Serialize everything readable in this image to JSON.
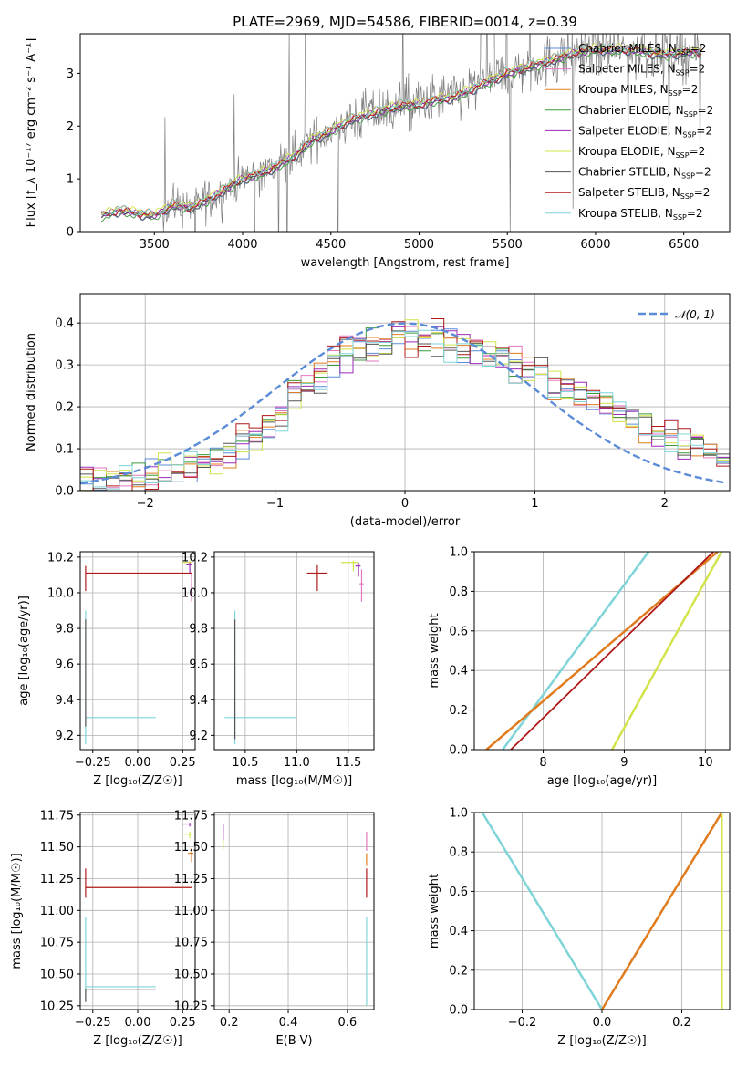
{
  "figure": {
    "title": "PLATE=2969, MJD=54586, FIBERID=0014, z=0.39"
  },
  "colors": {
    "Chabrier MILES": "#5b8bd8",
    "Salpeter MILES": "#e377c2",
    "Kroupa MILES": "#e07b1e",
    "Chabrier ELODIE": "#3a9a3a",
    "Salpeter ELODIE": "#9a2bb8",
    "Kroupa ELODIE": "#d3e34a",
    "Chabrier STELIB": "#555555",
    "Salpeter STELIB": "#b01818",
    "Kroupa STELIB": "#7fd4d8",
    "data": "#7f7f7f",
    "normal": "#5b8bd8"
  },
  "chart_data": [
    {
      "id": "spectrum",
      "type": "line",
      "title": "PLATE=2969, MJD=54586, FIBERID=0014, z=0.39",
      "xlabel": "wavelength [Angstrom, rest frame]",
      "ylabel": "Flux [f_λ 10⁻¹⁷ erg cm⁻² s⁻¹ A⁻¹]",
      "xlim": [
        3080,
        6760
      ],
      "ylim": [
        0,
        3.75
      ],
      "xticks": [
        "3500",
        "4000",
        "4500",
        "5000",
        "5500",
        "6000",
        "6500"
      ],
      "yticks": [
        "0",
        "1",
        "2",
        "3"
      ],
      "grid": false,
      "legend_position": "bottom-right",
      "legend": [
        "Chabrier MILES, N_SSP=2",
        "Salpeter MILES, N_SSP=2",
        "Kroupa MILES, N_SSP=2",
        "Chabrier ELODIE, N_SSP=2",
        "Salpeter ELODIE, N_SSP=2",
        "Kroupa ELODIE, N_SSP=2",
        "Chabrier STELIB, N_SSP=2",
        "Salpeter STELIB, N_SSP=2",
        "Kroupa STELIB, N_SSP=2"
      ],
      "model_trend": {
        "x": [
          3200,
          3300,
          3400,
          3500,
          3600,
          3700,
          3800,
          3900,
          4000,
          4100,
          4200,
          4300,
          4400,
          4500,
          4600,
          4700,
          4800,
          4900,
          5000,
          5100,
          5200,
          5300,
          5400,
          5500,
          5600,
          5700,
          5800,
          5900,
          6000,
          6100,
          6200,
          6300,
          6400,
          6500,
          6600
        ],
        "y": [
          0.3,
          0.4,
          0.35,
          0.3,
          0.5,
          0.45,
          0.6,
          0.8,
          1.0,
          1.1,
          1.25,
          1.45,
          1.75,
          1.9,
          2.1,
          2.2,
          2.3,
          2.4,
          2.4,
          2.5,
          2.55,
          2.7,
          2.85,
          3.0,
          3.1,
          3.2,
          3.3,
          3.4,
          3.45,
          3.45,
          3.45,
          3.4,
          3.35,
          3.4,
          3.4
        ]
      }
    },
    {
      "id": "residuals",
      "type": "line",
      "xlabel": "(data-model)/error",
      "ylabel": "Normed distribution",
      "xlim": [
        -2.5,
        2.5
      ],
      "ylim": [
        0,
        0.47
      ],
      "xticks": [
        "−2",
        "−1",
        "0",
        "1",
        "2"
      ],
      "yticks": [
        "0.0",
        "0.1",
        "0.2",
        "0.3",
        "0.4"
      ],
      "grid": true,
      "legend_position": "top-right",
      "legend": [
        "𝒩(0, 1)"
      ],
      "normal_curve": {
        "mean": 0,
        "sigma": 1
      },
      "histogram_trend": {
        "x": [
          -2.5,
          -2.0,
          -1.5,
          -1.0,
          -0.5,
          0.0,
          0.5,
          1.0,
          1.5,
          2.0,
          2.5
        ],
        "y": [
          0.02,
          0.03,
          0.07,
          0.17,
          0.33,
          0.37,
          0.35,
          0.28,
          0.21,
          0.13,
          0.08
        ]
      }
    },
    {
      "id": "age-vs-Z",
      "type": "scatter",
      "xlabel": "Z [log₁₀(Z/Z☉)]",
      "ylabel": "age  [log₁₀(age/yr)]",
      "xlim": [
        -0.32,
        0.32
      ],
      "ylim": [
        9.12,
        10.23
      ],
      "xticks": [
        "−0.25",
        "0.00",
        "0.25"
      ],
      "yticks": [
        "9.2",
        "9.4",
        "9.6",
        "9.8",
        "10.0",
        "10.2"
      ],
      "grid": true
    },
    {
      "id": "age-vs-mass",
      "type": "scatter",
      "xlabel": "mass [log₁₀(M/M☉)]",
      "ylabel": "",
      "xlim": [
        10.2,
        11.75
      ],
      "ylim": [
        9.12,
        10.23
      ],
      "xticks": [
        "10.5",
        "11.0",
        "11.5"
      ],
      "yticks": [
        "9.2",
        "9.4",
        "9.6",
        "9.8",
        "10.0",
        "10.2"
      ],
      "grid": true
    },
    {
      "id": "mass-weight-vs-age",
      "type": "line",
      "xlabel": "age  [log₁₀(age/yr)]",
      "ylabel": "mass weight",
      "xlim": [
        7.15,
        10.3
      ],
      "ylim": [
        0,
        1.0
      ],
      "xticks": [
        "8",
        "9",
        "10"
      ],
      "yticks": [
        "0.0",
        "0.2",
        "0.4",
        "0.6",
        "0.8",
        "1.0"
      ],
      "grid": true,
      "series": [
        {
          "name": "Kroupa STELIB",
          "x": [
            7.5,
            9.3
          ],
          "y": [
            0,
            1
          ]
        },
        {
          "name": "Kroupa MILES",
          "x": [
            7.3,
            10.15
          ],
          "y": [
            0,
            1
          ]
        },
        {
          "name": "Salpeter STELIB",
          "x": [
            7.6,
            10.1
          ],
          "y": [
            0,
            1
          ]
        },
        {
          "name": "Kroupa ELODIE",
          "x": [
            8.85,
            10.2
          ],
          "y": [
            0,
            1
          ]
        }
      ]
    },
    {
      "id": "mass-vs-Z",
      "type": "scatter",
      "xlabel": "Z [log₁₀(Z/Z☉)]",
      "ylabel": "mass [log₁₀(M/M☉)]",
      "xlim": [
        -0.32,
        0.32
      ],
      "ylim": [
        10.22,
        11.77
      ],
      "xticks": [
        "−0.25",
        "0.00",
        "0.25"
      ],
      "yticks": [
        "10.25",
        "10.50",
        "10.75",
        "11.00",
        "11.25",
        "11.50",
        "11.75"
      ],
      "grid": true
    },
    {
      "id": "mass-vs-EBV",
      "type": "scatter",
      "xlabel": "E(B-V)",
      "ylabel": "",
      "xlim": [
        0.15,
        0.69
      ],
      "ylim": [
        10.22,
        11.77
      ],
      "xticks": [
        "0.2",
        "0.4",
        "0.6"
      ],
      "yticks": [
        "10.25",
        "10.50",
        "10.75",
        "11.00",
        "11.25",
        "11.50",
        "11.75"
      ],
      "grid": true
    },
    {
      "id": "mass-weight-vs-Z",
      "type": "line",
      "xlabel": "Z [log₁₀(Z/Z☉)]",
      "ylabel": "mass weight",
      "xlim": [
        -0.32,
        0.32
      ],
      "ylim": [
        0,
        1.0
      ],
      "xticks": [
        "−0.2",
        "0.0",
        "0.2"
      ],
      "yticks": [
        "0.0",
        "0.2",
        "0.4",
        "0.6",
        "0.8",
        "1.0"
      ],
      "grid": true,
      "series": [
        {
          "name": "Kroupa STELIB",
          "x": [
            -0.3,
            0.0
          ],
          "y": [
            1,
            0
          ]
        },
        {
          "name": "Kroupa MILES",
          "x": [
            0.0,
            0.3
          ],
          "y": [
            0,
            1
          ]
        },
        {
          "name": "Kroupa ELODIE",
          "x": [
            0.3,
            0.3
          ],
          "y": [
            0,
            1
          ]
        }
      ]
    }
  ]
}
